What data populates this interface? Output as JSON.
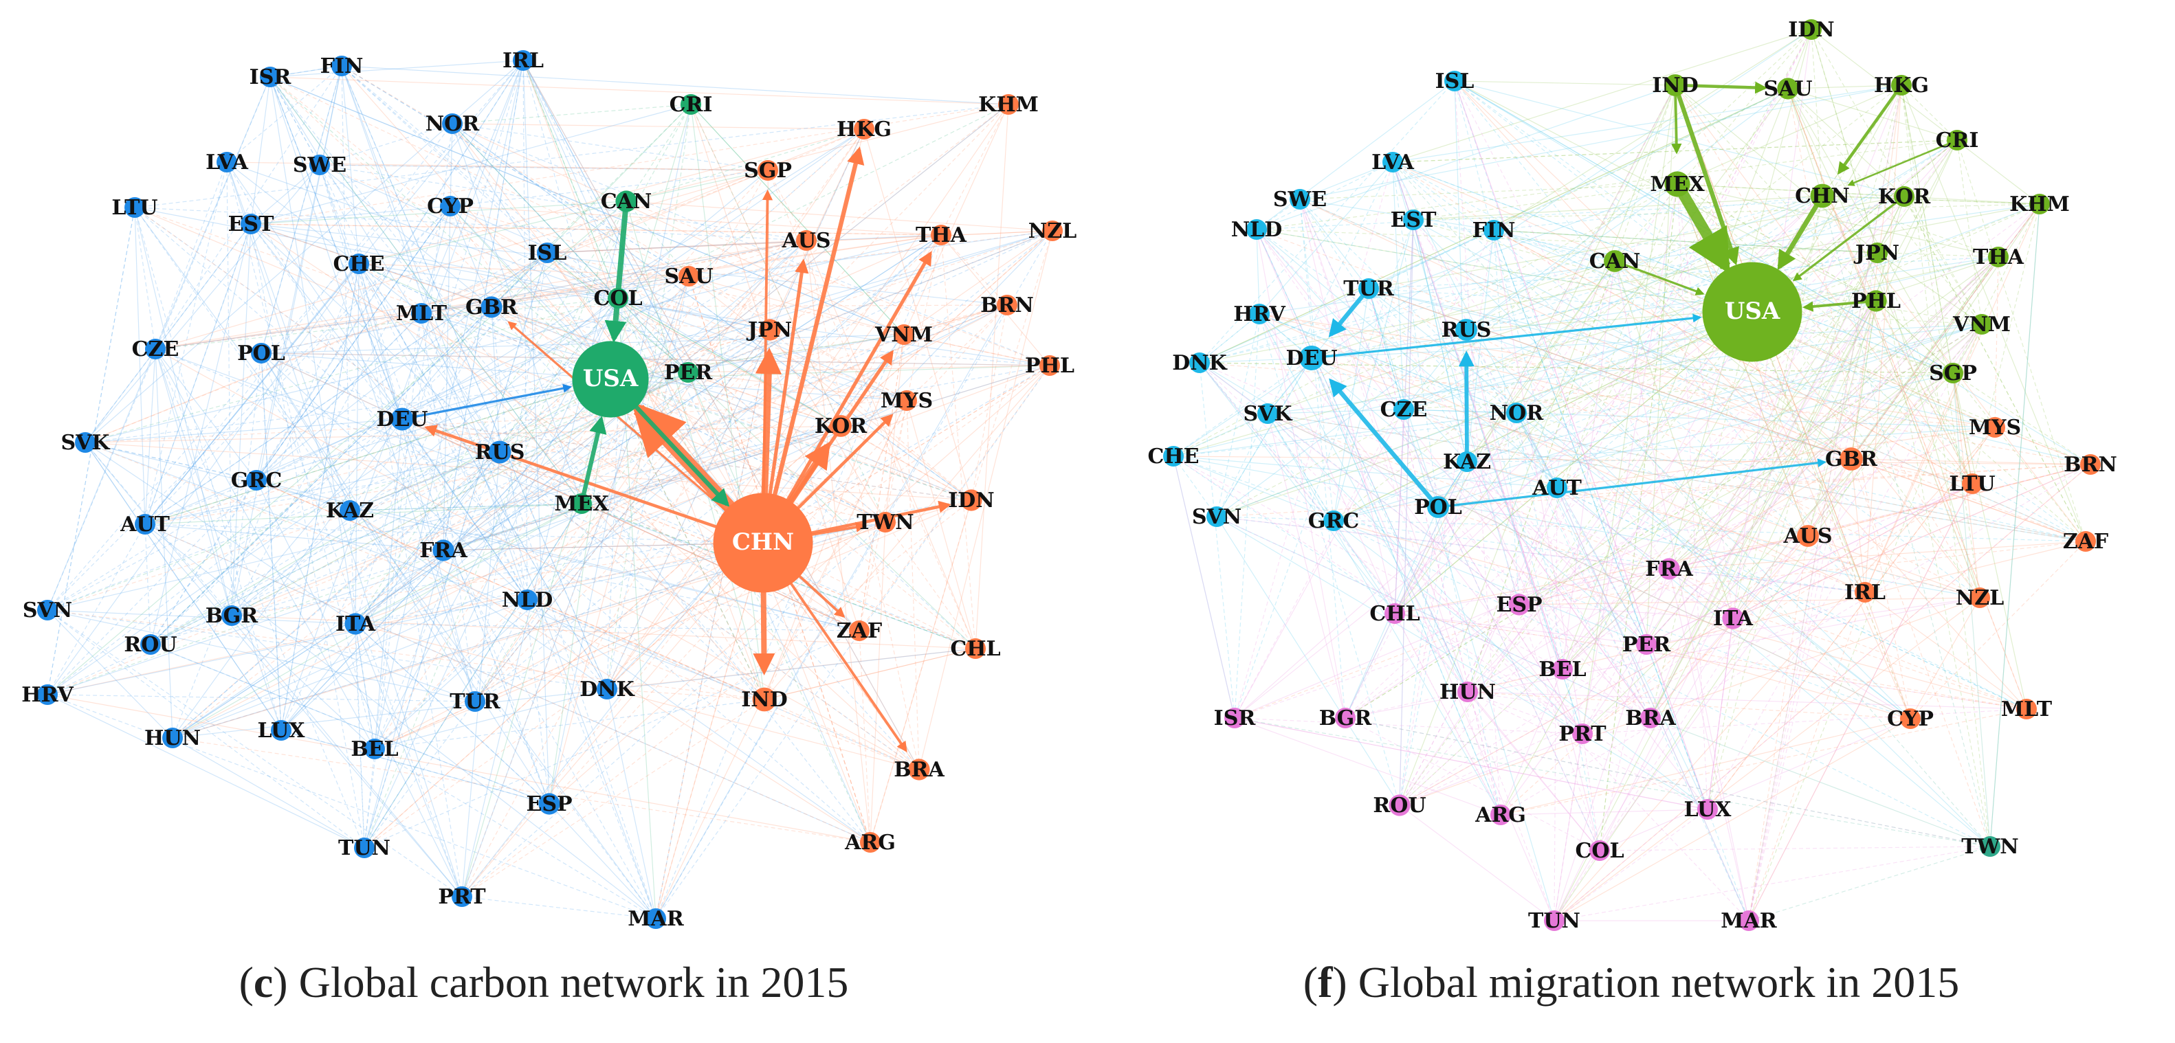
{
  "captions": {
    "left_letter": "c",
    "left_text": " Global carbon network in 2015",
    "right_letter": "f",
    "right_text": " Global migration network in 2015"
  },
  "colors": {
    "blue_cluster": "#1e88e5",
    "orange_cluster": "#ff7a45",
    "green_cluster": "#1faa6b",
    "cyan_cluster": "#1eb8e8",
    "lime_cluster": "#6fb320",
    "pink_cluster": "#e678d8",
    "teal_cluster": "#2fa88a"
  },
  "networks": [
    {
      "id": "carbon",
      "nodes": [
        {
          "label": "ISR",
          "cluster": "blue_cluster",
          "size": 1
        },
        {
          "label": "FIN",
          "cluster": "blue_cluster",
          "size": 1
        },
        {
          "label": "IRL",
          "cluster": "blue_cluster",
          "size": 1
        },
        {
          "label": "CRI",
          "cluster": "green_cluster",
          "size": 1
        },
        {
          "label": "HKG",
          "cluster": "orange_cluster",
          "size": 1
        },
        {
          "label": "KHM",
          "cluster": "orange_cluster",
          "size": 1
        },
        {
          "label": "LVA",
          "cluster": "blue_cluster",
          "size": 1
        },
        {
          "label": "NOR",
          "cluster": "blue_cluster",
          "size": 1
        },
        {
          "label": "SWE",
          "cluster": "blue_cluster",
          "size": 1
        },
        {
          "label": "SGP",
          "cluster": "orange_cluster",
          "size": 1
        },
        {
          "label": "LTU",
          "cluster": "blue_cluster",
          "size": 1
        },
        {
          "label": "EST",
          "cluster": "blue_cluster",
          "size": 1
        },
        {
          "label": "CYP",
          "cluster": "blue_cluster",
          "size": 1
        },
        {
          "label": "CAN",
          "cluster": "green_cluster",
          "size": 1.2
        },
        {
          "label": "AUS",
          "cluster": "orange_cluster",
          "size": 1
        },
        {
          "label": "THA",
          "cluster": "orange_cluster",
          "size": 1
        },
        {
          "label": "NZL",
          "cluster": "orange_cluster",
          "size": 1
        },
        {
          "label": "CHE",
          "cluster": "blue_cluster",
          "size": 1
        },
        {
          "label": "ISL",
          "cluster": "blue_cluster",
          "size": 1
        },
        {
          "label": "SAU",
          "cluster": "orange_cluster",
          "size": 1
        },
        {
          "label": "BRN",
          "cluster": "orange_cluster",
          "size": 1
        },
        {
          "label": "MLT",
          "cluster": "blue_cluster",
          "size": 1
        },
        {
          "label": "GBR",
          "cluster": "blue_cluster",
          "size": 1.2
        },
        {
          "label": "COL",
          "cluster": "green_cluster",
          "size": 1
        },
        {
          "label": "JPN",
          "cluster": "orange_cluster",
          "size": 1.2
        },
        {
          "label": "VNM",
          "cluster": "orange_cluster",
          "size": 1
        },
        {
          "label": "CZE",
          "cluster": "blue_cluster",
          "size": 1
        },
        {
          "label": "POL",
          "cluster": "blue_cluster",
          "size": 1
        },
        {
          "label": "USA",
          "cluster": "green_cluster",
          "size": 3.2
        },
        {
          "label": "PER",
          "cluster": "green_cluster",
          "size": 1
        },
        {
          "label": "PHL",
          "cluster": "orange_cluster",
          "size": 1
        },
        {
          "label": "DEU",
          "cluster": "blue_cluster",
          "size": 1.5
        },
        {
          "label": "MYS",
          "cluster": "orange_cluster",
          "size": 1
        },
        {
          "label": "SVK",
          "cluster": "blue_cluster",
          "size": 1
        },
        {
          "label": "RUS",
          "cluster": "blue_cluster",
          "size": 1.5
        },
        {
          "label": "KOR",
          "cluster": "orange_cluster",
          "size": 1.3
        },
        {
          "label": "GRC",
          "cluster": "blue_cluster",
          "size": 1
        },
        {
          "label": "KAZ",
          "cluster": "blue_cluster",
          "size": 1
        },
        {
          "label": "MEX",
          "cluster": "green_cluster",
          "size": 1
        },
        {
          "label": "CHN",
          "cluster": "orange_cluster",
          "size": 4.5
        },
        {
          "label": "IDN",
          "cluster": "orange_cluster",
          "size": 1.2
        },
        {
          "label": "AUT",
          "cluster": "blue_cluster",
          "size": 1
        },
        {
          "label": "FRA",
          "cluster": "blue_cluster",
          "size": 1.2
        },
        {
          "label": "TWN",
          "cluster": "orange_cluster",
          "size": 1
        },
        {
          "label": "SVN",
          "cluster": "blue_cluster",
          "size": 1
        },
        {
          "label": "BGR",
          "cluster": "blue_cluster",
          "size": 1
        },
        {
          "label": "NLD",
          "cluster": "blue_cluster",
          "size": 1
        },
        {
          "label": "ITA",
          "cluster": "blue_cluster",
          "size": 1.2
        },
        {
          "label": "ZAF",
          "cluster": "orange_cluster",
          "size": 1
        },
        {
          "label": "CHL",
          "cluster": "orange_cluster",
          "size": 1
        },
        {
          "label": "ROU",
          "cluster": "blue_cluster",
          "size": 1
        },
        {
          "label": "HRV",
          "cluster": "blue_cluster",
          "size": 1
        },
        {
          "label": "DNK",
          "cluster": "blue_cluster",
          "size": 1
        },
        {
          "label": "TUR",
          "cluster": "blue_cluster",
          "size": 1
        },
        {
          "label": "LUX",
          "cluster": "blue_cluster",
          "size": 1
        },
        {
          "label": "IND",
          "cluster": "orange_cluster",
          "size": 1.8
        },
        {
          "label": "HUN",
          "cluster": "blue_cluster",
          "size": 1
        },
        {
          "label": "BEL",
          "cluster": "blue_cluster",
          "size": 1
        },
        {
          "label": "ESP",
          "cluster": "blue_cluster",
          "size": 1.2
        },
        {
          "label": "BRA",
          "cluster": "orange_cluster",
          "size": 1.2
        },
        {
          "label": "TUN",
          "cluster": "blue_cluster",
          "size": 1
        },
        {
          "label": "ARG",
          "cluster": "orange_cluster",
          "size": 1
        },
        {
          "label": "PRT",
          "cluster": "blue_cluster",
          "size": 1
        },
        {
          "label": "MAR",
          "cluster": "blue_cluster",
          "size": 1
        }
      ],
      "strong_links": [
        {
          "from": "CHN",
          "to": "USA",
          "weight": 6
        },
        {
          "from": "CHN",
          "to": "JPN",
          "weight": 3
        },
        {
          "from": "CHN",
          "to": "KOR",
          "weight": 3
        },
        {
          "from": "CHN",
          "to": "IND",
          "weight": 2.5
        },
        {
          "from": "CHN",
          "to": "HKG",
          "weight": 2
        },
        {
          "from": "CHN",
          "to": "THA",
          "weight": 1.6
        },
        {
          "from": "CHN",
          "to": "AUS",
          "weight": 1.6
        },
        {
          "from": "CHN",
          "to": "VNM",
          "weight": 1.6
        },
        {
          "from": "CHN",
          "to": "MYS",
          "weight": 1.4
        },
        {
          "from": "CHN",
          "to": "IDN",
          "weight": 1.4
        },
        {
          "from": "CHN",
          "to": "TWN",
          "weight": 1.2
        },
        {
          "from": "CHN",
          "to": "ZAF",
          "weight": 1.2
        },
        {
          "from": "CHN",
          "to": "BRA",
          "weight": 1.2
        },
        {
          "from": "CHN",
          "to": "SGP",
          "weight": 1.2
        },
        {
          "from": "CHN",
          "to": "DEU",
          "weight": 1.4
        },
        {
          "from": "CHN",
          "to": "GBR",
          "weight": 1
        },
        {
          "from": "CAN",
          "to": "USA",
          "weight": 2.5
        },
        {
          "from": "MEX",
          "to": "USA",
          "weight": 2
        },
        {
          "from": "USA",
          "to": "CHN",
          "weight": 2
        },
        {
          "from": "DEU",
          "to": "USA",
          "weight": 1
        }
      ]
    },
    {
      "id": "migration",
      "nodes": [
        {
          "label": "IDN",
          "cluster": "lime_cluster",
          "size": 1
        },
        {
          "label": "ISL",
          "cluster": "cyan_cluster",
          "size": 1
        },
        {
          "label": "IND",
          "cluster": "lime_cluster",
          "size": 1.3
        },
        {
          "label": "SAU",
          "cluster": "lime_cluster",
          "size": 1.2
        },
        {
          "label": "HKG",
          "cluster": "lime_cluster",
          "size": 1
        },
        {
          "label": "CRI",
          "cluster": "lime_cluster",
          "size": 1
        },
        {
          "label": "LVA",
          "cluster": "cyan_cluster",
          "size": 1
        },
        {
          "label": "MEX",
          "cluster": "lime_cluster",
          "size": 2.2
        },
        {
          "label": "CHN",
          "cluster": "lime_cluster",
          "size": 1.8
        },
        {
          "label": "KOR",
          "cluster": "lime_cluster",
          "size": 1
        },
        {
          "label": "SWE",
          "cluster": "cyan_cluster",
          "size": 1
        },
        {
          "label": "KHM",
          "cluster": "lime_cluster",
          "size": 1
        },
        {
          "label": "NLD",
          "cluster": "cyan_cluster",
          "size": 1
        },
        {
          "label": "EST",
          "cluster": "cyan_cluster",
          "size": 1
        },
        {
          "label": "FIN",
          "cluster": "cyan_cluster",
          "size": 1
        },
        {
          "label": "JPN",
          "cluster": "lime_cluster",
          "size": 1
        },
        {
          "label": "THA",
          "cluster": "lime_cluster",
          "size": 1
        },
        {
          "label": "CAN",
          "cluster": "lime_cluster",
          "size": 1.3
        },
        {
          "label": "USA",
          "cluster": "lime_cluster",
          "size": 4.5
        },
        {
          "label": "TUR",
          "cluster": "cyan_cluster",
          "size": 1
        },
        {
          "label": "PHL",
          "cluster": "lime_cluster",
          "size": 1.2
        },
        {
          "label": "HRV",
          "cluster": "cyan_cluster",
          "size": 1
        },
        {
          "label": "VNM",
          "cluster": "lime_cluster",
          "size": 1
        },
        {
          "label": "RUS",
          "cluster": "cyan_cluster",
          "size": 1.3
        },
        {
          "label": "DNK",
          "cluster": "cyan_cluster",
          "size": 1
        },
        {
          "label": "DEU",
          "cluster": "cyan_cluster",
          "size": 2
        },
        {
          "label": "SGP",
          "cluster": "lime_cluster",
          "size": 1
        },
        {
          "label": "SVK",
          "cluster": "cyan_cluster",
          "size": 1
        },
        {
          "label": "CZE",
          "cluster": "cyan_cluster",
          "size": 1
        },
        {
          "label": "NOR",
          "cluster": "cyan_cluster",
          "size": 1
        },
        {
          "label": "MYS",
          "cluster": "orange_cluster",
          "size": 1
        },
        {
          "label": "KAZ",
          "cluster": "cyan_cluster",
          "size": 1
        },
        {
          "label": "GBR",
          "cluster": "orange_cluster",
          "size": 1.6
        },
        {
          "label": "BRN",
          "cluster": "orange_cluster",
          "size": 1
        },
        {
          "label": "CHE",
          "cluster": "cyan_cluster",
          "size": 1
        },
        {
          "label": "AUT",
          "cluster": "cyan_cluster",
          "size": 1
        },
        {
          "label": "LTU",
          "cluster": "orange_cluster",
          "size": 1
        },
        {
          "label": "SVN",
          "cluster": "cyan_cluster",
          "size": 1
        },
        {
          "label": "GRC",
          "cluster": "cyan_cluster",
          "size": 1
        },
        {
          "label": "POL",
          "cluster": "cyan_cluster",
          "size": 1.3
        },
        {
          "label": "AUS",
          "cluster": "orange_cluster",
          "size": 1.3
        },
        {
          "label": "ZAF",
          "cluster": "orange_cluster",
          "size": 1
        },
        {
          "label": "FRA",
          "cluster": "pink_cluster",
          "size": 1.2
        },
        {
          "label": "ESP",
          "cluster": "pink_cluster",
          "size": 1.2
        },
        {
          "label": "ITA",
          "cluster": "pink_cluster",
          "size": 1.2
        },
        {
          "label": "IRL",
          "cluster": "orange_cluster",
          "size": 1
        },
        {
          "label": "NZL",
          "cluster": "orange_cluster",
          "size": 1
        },
        {
          "label": "CHL",
          "cluster": "pink_cluster",
          "size": 1
        },
        {
          "label": "PER",
          "cluster": "pink_cluster",
          "size": 1
        },
        {
          "label": "BEL",
          "cluster": "pink_cluster",
          "size": 1
        },
        {
          "label": "HUN",
          "cluster": "pink_cluster",
          "size": 1
        },
        {
          "label": "ISR",
          "cluster": "pink_cluster",
          "size": 1
        },
        {
          "label": "BGR",
          "cluster": "pink_cluster",
          "size": 1
        },
        {
          "label": "BRA",
          "cluster": "pink_cluster",
          "size": 1
        },
        {
          "label": "CYP",
          "cluster": "orange_cluster",
          "size": 1
        },
        {
          "label": "MLT",
          "cluster": "orange_cluster",
          "size": 1
        },
        {
          "label": "PRT",
          "cluster": "pink_cluster",
          "size": 1
        },
        {
          "label": "ROU",
          "cluster": "pink_cluster",
          "size": 1.2
        },
        {
          "label": "ARG",
          "cluster": "pink_cluster",
          "size": 1
        },
        {
          "label": "LUX",
          "cluster": "pink_cluster",
          "size": 1
        },
        {
          "label": "COL",
          "cluster": "pink_cluster",
          "size": 1
        },
        {
          "label": "TWN",
          "cluster": "teal_cluster",
          "size": 1
        },
        {
          "label": "TUN",
          "cluster": "pink_cluster",
          "size": 1
        },
        {
          "label": "MAR",
          "cluster": "pink_cluster",
          "size": 1
        }
      ],
      "strong_links": [
        {
          "from": "MEX",
          "to": "USA",
          "weight": 5
        },
        {
          "from": "CHN",
          "to": "USA",
          "weight": 2.2
        },
        {
          "from": "IND",
          "to": "USA",
          "weight": 2
        },
        {
          "from": "IND",
          "to": "MEX",
          "weight": 1.2
        },
        {
          "from": "IND",
          "to": "SAU",
          "weight": 1.4
        },
        {
          "from": "HKG",
          "to": "CHN",
          "weight": 1.4
        },
        {
          "from": "PHL",
          "to": "USA",
          "weight": 1.2
        },
        {
          "from": "KOR",
          "to": "USA",
          "weight": 1
        },
        {
          "from": "CAN",
          "to": "USA",
          "weight": 1
        },
        {
          "from": "TUR",
          "to": "DEU",
          "weight": 2
        },
        {
          "from": "POL",
          "to": "DEU",
          "weight": 2
        },
        {
          "from": "KAZ",
          "to": "RUS",
          "weight": 1.8
        },
        {
          "from": "DEU",
          "to": "USA",
          "weight": 1
        },
        {
          "from": "POL",
          "to": "GBR",
          "weight": 1
        },
        {
          "from": "CRI",
          "to": "CHN",
          "weight": 0.8
        }
      ]
    }
  ]
}
